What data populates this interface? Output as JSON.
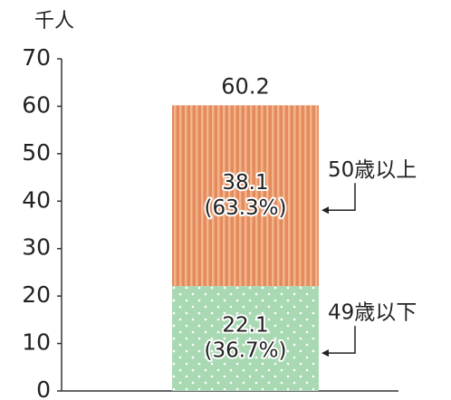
{
  "chart_data": {
    "type": "stacked_bar",
    "y_label": "千人",
    "total": 60.2,
    "series": [
      {
        "name": "49歳以下",
        "color": "#a9d9b3",
        "values": [
          22.1
        ],
        "share_labels": [
          "(36.7%)"
        ]
      },
      {
        "name": "50歳以上",
        "color": "#e38b5c",
        "values": [
          38.1
        ],
        "share_labels": [
          "(63.3%)"
        ]
      }
    ],
    "ylim": [
      0,
      70
    ],
    "yticks": [
      0,
      10,
      20,
      30,
      40,
      50,
      60,
      70
    ]
  }
}
